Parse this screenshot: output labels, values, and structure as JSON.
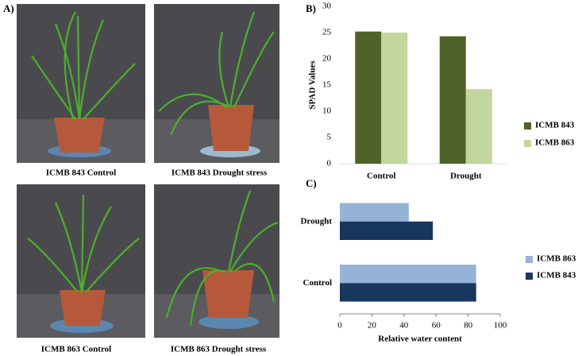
{
  "panel_a": {
    "label": "A)",
    "photos": [
      "ICMB 843 Control",
      "ICMB 843 Drought stress",
      "ICMB 863 Control",
      "ICMB 863 Drought stress"
    ]
  },
  "chart_data": [
    {
      "type": "bar",
      "panel_label": "B)",
      "ylabel": "SPAD Values",
      "categories": [
        "Control",
        "Drought"
      ],
      "series": [
        {
          "name": "ICMB 843",
          "color": "#4f6228",
          "values": [
            25.2,
            24.3
          ]
        },
        {
          "name": "ICMB 863",
          "color": "#c3d69b",
          "values": [
            25,
            14.2
          ]
        }
      ],
      "ylim": [
        0,
        30
      ],
      "yticks": [
        0,
        5,
        10,
        15,
        20,
        25,
        30
      ],
      "legend": "right"
    },
    {
      "type": "barh",
      "panel_label": "C)",
      "xlabel": "Relative water content",
      "categories": [
        "Drought",
        "Control"
      ],
      "series": [
        {
          "name": "ICMB 863",
          "color": "#95b3d7",
          "values": [
            43,
            85
          ]
        },
        {
          "name": "ICMB 843",
          "color": "#17375e",
          "values": [
            58,
            85
          ]
        }
      ],
      "xlim": [
        0,
        100
      ],
      "xticks": [
        0,
        20,
        40,
        60,
        80,
        100
      ],
      "legend": "right"
    }
  ]
}
